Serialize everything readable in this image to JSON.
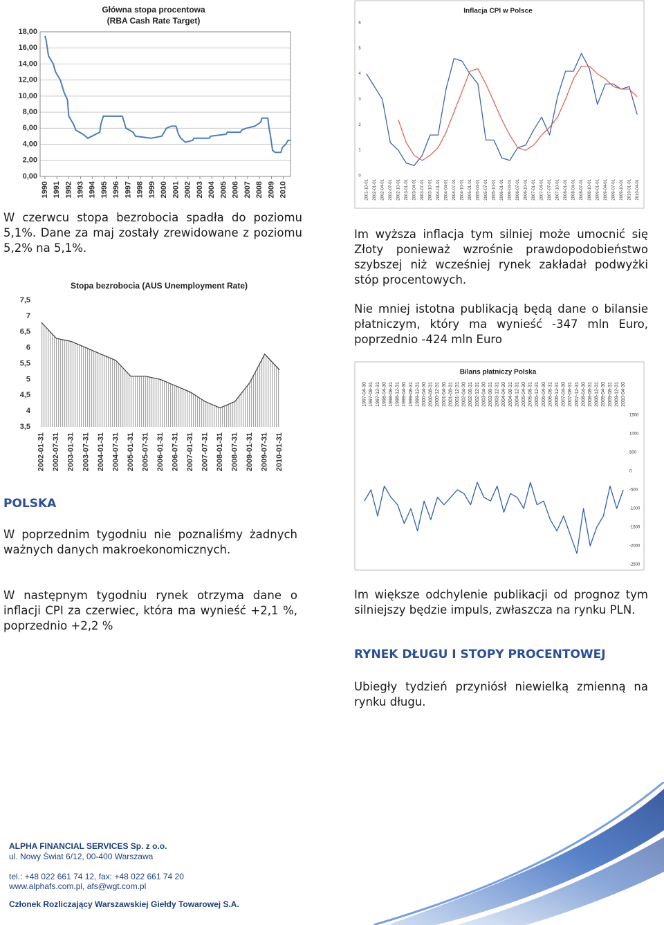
{
  "chart_data": [
    {
      "type": "line",
      "title": "Główna stopa procentowa",
      "subtitle": "(RBA Cash Rate Target)",
      "color": "#4a7ebb",
      "grid": true,
      "ylim": [
        0,
        18
      ],
      "yticks": [
        {
          "value": 0,
          "label": "0,00"
        },
        {
          "value": 2,
          "label": "2,00"
        },
        {
          "value": 4,
          "label": "4,00"
        },
        {
          "value": 6,
          "label": "6,00"
        },
        {
          "value": 8,
          "label": "8,00"
        },
        {
          "value": 10,
          "label": "10,00"
        },
        {
          "value": 12,
          "label": "12,00"
        },
        {
          "value": 14,
          "label": "14,00"
        },
        {
          "value": 16,
          "label": "16,00"
        },
        {
          "value": 18,
          "label": "18,00"
        }
      ],
      "xlim": [
        1989.6,
        2010.6
      ],
      "xticks": [
        1990,
        1991,
        1992,
        1993,
        1994,
        1995,
        1996,
        1997,
        1998,
        1999,
        2000,
        2001,
        2002,
        2003,
        2004,
        2005,
        2006,
        2007,
        2008,
        2009,
        2010
      ],
      "x": [
        1990.0,
        1990.1,
        1990.3,
        1990.7,
        1990.9,
        1991.3,
        1991.4,
        1991.6,
        1991.9,
        1992.0,
        1992.4,
        1992.6,
        1993.2,
        1993.6,
        1994.6,
        1994.7,
        1994.9,
        1996.5,
        1996.6,
        1996.8,
        1997.4,
        1997.6,
        1998.9,
        1999.8,
        2000.0,
        2000.2,
        2000.6,
        2001.0,
        2001.2,
        2001.4,
        2001.8,
        2002.4,
        2002.5,
        2003.8,
        2003.9,
        2005.2,
        2005.3,
        2006.4,
        2006.5,
        2006.9,
        2007.6,
        2008.1,
        2008.2,
        2008.7,
        2008.8,
        2008.9,
        2009.0,
        2009.1,
        2009.3,
        2009.8,
        2009.9,
        2010.0,
        2010.2,
        2010.4,
        2010.6
      ],
      "values": [
        17.5,
        17,
        15,
        14,
        13,
        12,
        11.5,
        10.5,
        9.5,
        7.5,
        6.5,
        5.75,
        5.25,
        4.75,
        5.5,
        6.5,
        7.5,
        7.5,
        7,
        6,
        5.5,
        5,
        4.75,
        5,
        5.5,
        6,
        6.25,
        6.25,
        5.25,
        4.75,
        4.25,
        4.5,
        4.75,
        4.75,
        5,
        5.25,
        5.5,
        5.5,
        5.75,
        6,
        6.25,
        6.75,
        7.25,
        7.25,
        6,
        5.25,
        4.25,
        3.25,
        3,
        3,
        3.5,
        3.75,
        4,
        4.5,
        4.5
      ]
    },
    {
      "type": "line",
      "title": "Inflacja CPI w Polsce",
      "grid": false,
      "ylim": [
        0,
        6
      ],
      "yticks": [
        0,
        1,
        2,
        3,
        4,
        5,
        6
      ],
      "categories": [
        "2001-10-01",
        "2002-01-01",
        "2002-04-01",
        "2002-07-01",
        "2002-10-01",
        "2003-01-01",
        "2003-04-01",
        "2003-07-01",
        "2003-10-01",
        "2004-01-01",
        "2004-04-01",
        "2004-07-01",
        "2004-10-01",
        "2005-01-01",
        "2005-04-01",
        "2005-07-01",
        "2005-10-01",
        "2006-01-01",
        "2006-04-01",
        "2006-07-01",
        "2006-10-01",
        "2007-01-01",
        "2007-04-01",
        "2007-07-01",
        "2007-10-01",
        "2008-01-01",
        "2008-04-01",
        "2008-07-01",
        "2008-10-01",
        "2009-01-01",
        "2009-04-01",
        "2009-07-01",
        "2009-10-01",
        "2010-01-01",
        "2010-04-01"
      ],
      "series": [
        {
          "color": "#3b64ad",
          "values": [
            4.0,
            3.5,
            3.0,
            1.3,
            1.0,
            0.5,
            0.4,
            0.8,
            1.6,
            1.6,
            3.4,
            4.6,
            4.5,
            4.0,
            3.6,
            1.4,
            1.4,
            0.7,
            0.6,
            1.1,
            1.2,
            1.8,
            2.3,
            1.6,
            3.1,
            4.1,
            4.1,
            4.8,
            4.2,
            2.8,
            3.6,
            3.6,
            3.4,
            3.5,
            2.4
          ]
        },
        {
          "color": "#e0675c",
          "values": [
            null,
            null,
            null,
            null,
            2.2,
            1.3,
            0.8,
            0.6,
            0.8,
            1.1,
            1.7,
            2.5,
            3.3,
            4.1,
            4.2,
            3.6,
            2.9,
            2.2,
            1.6,
            1.1,
            1.0,
            1.2,
            1.6,
            1.9,
            2.3,
            3.0,
            3.8,
            4.3,
            4.3,
            4.0,
            3.8,
            3.5,
            3.4,
            3.4,
            3.1
          ]
        }
      ]
    },
    {
      "type": "area",
      "title": "Stopa bezrobocia (AUS Unemployment Rate)",
      "color": "#3f3f3f",
      "grid": false,
      "ylim": [
        3.5,
        7.5
      ],
      "yticks": [
        {
          "value": 3.5,
          "label": "3,5"
        },
        4,
        {
          "value": 4.5,
          "label": "4,5"
        },
        5,
        {
          "value": 5.5,
          "label": "5,5"
        },
        6,
        {
          "value": 6.5,
          "label": "6,5"
        },
        7,
        {
          "value": 7.5,
          "label": "7,5"
        }
      ],
      "categories": [
        "2002-01-31",
        "2002-07-31",
        "2003-01-31",
        "2003-07-31",
        "2004-01-31",
        "2004-07-31",
        "2005-01-31",
        "2005-07-31",
        "2006-01-31",
        "2006-07-31",
        "2007-01-31",
        "2007-07-31",
        "2008-01-31",
        "2008-07-31",
        "2009-01-31",
        "2009-07-31",
        "2010-01-31"
      ],
      "values": [
        6.8,
        6.3,
        6.2,
        6.0,
        5.8,
        5.6,
        5.1,
        5.1,
        5.0,
        4.8,
        4.6,
        4.3,
        4.1,
        4.3,
        4.9,
        5.8,
        5.3
      ]
    },
    {
      "type": "line",
      "title": "Bilans płatniczy Polska",
      "color": "#2e5fb0",
      "grid": false,
      "ylim": [
        -2500,
        1500
      ],
      "yticks": [
        1500,
        1000,
        500,
        0,
        -500,
        -1000,
        -1500,
        -2000,
        -2500
      ],
      "categories": [
        "1997-04-30",
        "1997-08-31",
        "1997-12-31",
        "1998-04-30",
        "1998-08-31",
        "1998-12-31",
        "1999-04-30",
        "1999-08-31",
        "1999-12-31",
        "2000-04-30",
        "2000-08-31",
        "2000-12-31",
        "2001-04-30",
        "2001-08-31",
        "2001-12-31",
        "2002-04-30",
        "2002-08-31",
        "2002-12-31",
        "2003-04-30",
        "2003-08-31",
        "2003-12-31",
        "2004-04-30",
        "2004-08-31",
        "2004-12-31",
        "2005-04-30",
        "2005-08-31",
        "2005-12-31",
        "2006-04-30",
        "2006-08-31",
        "2006-12-31",
        "2007-04-30",
        "2007-08-31",
        "2007-12-31",
        "2008-04-30",
        "2008-08-31",
        "2008-12-31",
        "2009-04-30",
        "2009-08-31",
        "2009-12-31",
        "2010-04-30"
      ],
      "values": [
        -800,
        -500,
        -1200,
        -400,
        -700,
        -900,
        -1400,
        -1000,
        -1600,
        -800,
        -1300,
        -700,
        -900,
        -700,
        -500,
        -600,
        -900,
        -300,
        -700,
        -800,
        -400,
        -1100,
        -600,
        -700,
        -1000,
        -300,
        -900,
        -800,
        -1300,
        -1600,
        -1200,
        -1700,
        -2200,
        -1000,
        -2000,
        -1500,
        -1200,
        -400,
        -1000,
        -500
      ]
    }
  ],
  "column_left": {
    "paragraph_1": "W czerwcu stopa bezrobocia spadła do poziomu 5,1%. Dane za maj zostały zrewidowane z poziomu 5,2% na 5,1%.",
    "heading": "POLSKA",
    "paragraph_2": "W poprzednim tygodniu nie poznaliśmy żadnych ważnych danych makroekonomicznych.",
    "paragraph_3": "W następnym tygodniu rynek otrzyma dane o inflacji CPI za czerwiec, która ma wynieść +2,1 %, poprzednio +2,2 %"
  },
  "column_right": {
    "paragraph_1": "Im wyższa inflacja tym silniej może umocnić się Złoty ponieważ wzrośnie prawdopodobieństwo szybszej niż wcześniej rynek zakładał podwyżki stóp procentowych.",
    "paragraph_2": "Nie mniej istotna publikacją będą dane o bilansie płatniczym, który ma wynieść -347 mln Euro, poprzednio -424 mln Euro",
    "paragraph_3": "Im większe odchylenie publikacji od prognoz tym silniejszy będzie impuls, zwłaszcza na rynku PLN.",
    "heading": "RYNEK DŁUGU I STOPY PROCENTOWEJ",
    "paragraph_4": "Ubiegły tydzień przyniósł niewielką zmienną na rynku długu."
  },
  "footer": {
    "company": "ALPHA FINANCIAL SERVICES Sp. z o.o.",
    "address": "ul. Nowy Świat 6/12, 00-400 Warszawa",
    "phone": "tel.: +48 022 661 74 12, fax: +48 022 661 74 20",
    "web": "www.alphafs.com.pl, afs@wgt.com.pl",
    "membership": "Członek Rozliczający Warszawskiej Giełdy Towarowej S.A."
  }
}
